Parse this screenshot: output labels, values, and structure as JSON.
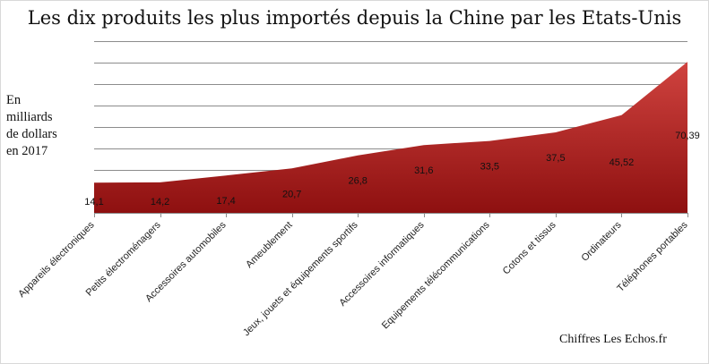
{
  "title": "Les dix produits les plus importés depuis la Chine par les Etats-Unis",
  "ylabel_lines": [
    "En",
    "milliards",
    "de dollars",
    "en 2017"
  ],
  "source": "Chiffres Les Echos.fr",
  "chart_data": {
    "type": "area",
    "title": "Les dix produits les plus importés depuis la Chine par les Etats-Unis",
    "ylabel": "En milliards de dollars en 2017",
    "xlabel": "",
    "categories": [
      "Appareils électroniques",
      "Petits électroménagers",
      "Accessoires automobiles",
      "Ameublement",
      "Jeux, jouets et équipements sportifs",
      "Accessoires informatiques",
      "Equipements télécommunications",
      "Cotons et tissus",
      "Ordinateurs",
      "Téléphones portables"
    ],
    "values": [
      14.1,
      14.2,
      17.4,
      20.7,
      26.8,
      31.6,
      33.5,
      37.5,
      45.52,
      70.39
    ],
    "data_labels": [
      "14,1",
      "14,2",
      "17,4",
      "20,7",
      "26,8",
      "31,6",
      "33,5",
      "37,5",
      "45,52",
      "70,39"
    ],
    "ylim": [
      0,
      80
    ],
    "grid": true,
    "legend": "none",
    "colors": {
      "fill_top": "#d0433f",
      "fill_bottom": "#8e1010",
      "grid": "#8c8c8c"
    }
  }
}
